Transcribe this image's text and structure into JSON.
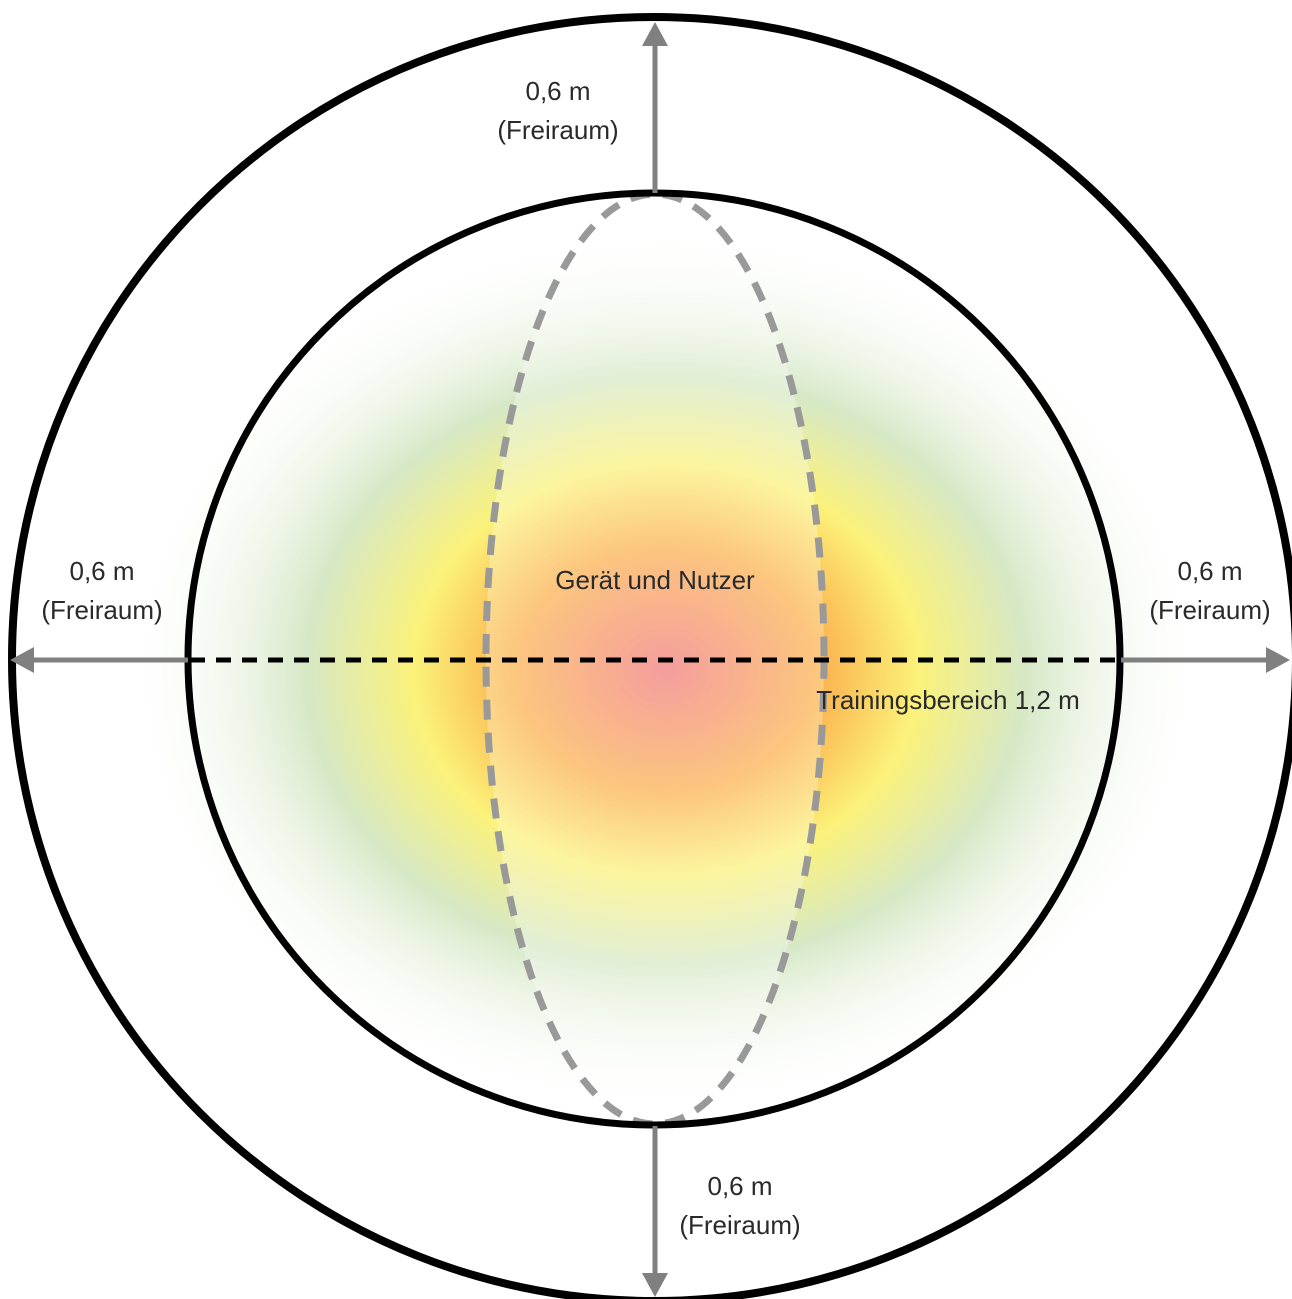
{
  "colors": {
    "outline": "#000000",
    "arrow": "#808080",
    "ellipse_dash": "#999999",
    "center": "#f17878",
    "orange": "#fbb04d",
    "yellow": "#fbf27a",
    "green": "#d6e8c6"
  },
  "labels": {
    "top": {
      "distance": "0,6 m",
      "note": "(Freiraum)"
    },
    "bottom": {
      "distance": "0,6 m",
      "note": "(Freiraum)"
    },
    "left": {
      "distance": "0,6 m",
      "note": "(Freiraum)"
    },
    "right": {
      "distance": "0,6 m",
      "note": "(Freiraum)"
    },
    "device_user": "Gerät und Nutzer",
    "training_area": "Trainingsbereich 1,2 m"
  },
  "icons": {
    "arrow_up": "arrow-up-icon",
    "arrow_down": "arrow-down-icon",
    "arrow_left": "arrow-left-icon",
    "arrow_right": "arrow-right-icon"
  }
}
